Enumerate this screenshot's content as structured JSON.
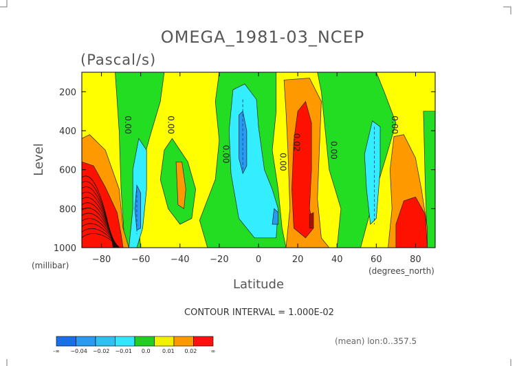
{
  "chart_data": {
    "type": "contour",
    "title": "OMEGA_1981-03_NCEP",
    "subtitle": "(Pascal/s)",
    "xlabel": "Latitude",
    "ylabel": "Level",
    "x_units": "(degrees_north)",
    "y_units": "(millibar)",
    "xlim": [
      -90,
      90
    ],
    "ylim": [
      1000,
      100
    ],
    "y_reversed": true,
    "grid": false,
    "x_ticks": [
      -80,
      -60,
      -40,
      -20,
      0,
      20,
      40,
      60,
      80
    ],
    "x_tick_labels": [
      "−80",
      "−60",
      "−40",
      "−20",
      "0",
      "20",
      "40",
      "60",
      "80"
    ],
    "y_ticks": [
      200,
      400,
      600,
      800,
      1000
    ],
    "y_tick_labels": [
      "200",
      "400",
      "600",
      "800",
      "1000"
    ],
    "contour_labels": [
      {
        "text": "0.00",
        "lat": -68,
        "lev": 370
      },
      {
        "text": "0.00",
        "lat": -46,
        "lev": 370
      },
      {
        "text": "0.00",
        "lat": -18,
        "lev": 520
      },
      {
        "text": "0.00",
        "lat": 11,
        "lev": 560
      },
      {
        "text": "0.02",
        "lat": 18,
        "lev": 460
      },
      {
        "text": "0.00",
        "lat": 37,
        "lev": 500
      },
      {
        "text": "0.00",
        "lat": 68,
        "lev": 370
      }
    ],
    "contour_interval_text": "CONTOUR INTERVAL = 1.000E-02",
    "note": "(mean) lon:0..357.5",
    "colorbar": {
      "labels": [
        "-∞",
        "−0.04",
        "−0.02",
        "−0.01",
        "0.0",
        "0.01",
        "0.02",
        "∞"
      ],
      "colors": [
        "#1a6ee6",
        "#2a9af0",
        "#2ec0f0",
        "#33e6ff",
        "#22cc22",
        "#f0f000",
        "#ff9900",
        "#ff1111"
      ]
    },
    "fields": {
      "yellow": "#ffff00",
      "green": "#22dd22",
      "cyan": "#33eeff",
      "blue": "#2a9af0",
      "orange": "#ff9900",
      "red": "#ff1100",
      "darkred": "#aa1100"
    }
  }
}
